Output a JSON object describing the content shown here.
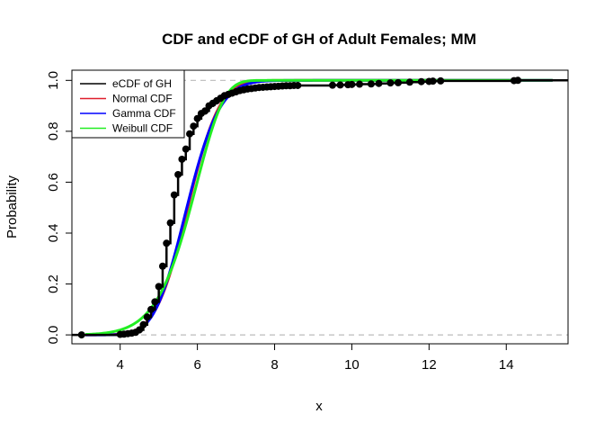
{
  "chart_data": {
    "type": "line",
    "title": "CDF and eCDF of GH of Adult Females; MM",
    "xlabel": "x",
    "ylabel": "Probability",
    "xlim": [
      2.75,
      15.6
    ],
    "ylim": [
      -0.035,
      1.04
    ],
    "x_ticks": [
      4,
      6,
      8,
      10,
      12,
      14
    ],
    "y_ticks": [
      0.0,
      0.2,
      0.4,
      0.6,
      0.8,
      1.0
    ],
    "x_tick_labels": [
      "4",
      "6",
      "8",
      "10",
      "12",
      "14"
    ],
    "y_tick_labels": [
      "0.0",
      "0.2",
      "0.4",
      "0.6",
      "0.8",
      "1.0"
    ],
    "reference_lines": [
      0,
      1
    ],
    "legend": {
      "position": "top-left",
      "entries": [
        {
          "label": "eCDF of GH",
          "color": "#000000"
        },
        {
          "label": "Normal CDF",
          "color": "#DF1F2D"
        },
        {
          "label": "Gamma CDF",
          "color": "#0000FF"
        },
        {
          "label": "Weibull CDF",
          "color": "#22EE22"
        }
      ]
    },
    "ecdf_points": {
      "x": [
        3.0,
        4.0,
        4.1,
        4.2,
        4.3,
        4.4,
        4.5,
        4.6,
        4.7,
        4.8,
        4.9,
        5.0,
        5.1,
        5.2,
        5.3,
        5.4,
        5.5,
        5.6,
        5.7,
        5.8,
        5.9,
        6.0,
        6.1,
        6.2,
        6.3,
        6.4,
        6.5,
        6.6,
        6.7,
        6.8,
        6.9,
        7.0,
        7.1,
        7.2,
        7.3,
        7.4,
        7.5,
        7.6,
        7.7,
        7.8,
        7.9,
        8.0,
        8.1,
        8.2,
        8.3,
        8.4,
        8.5,
        8.6,
        9.5,
        9.7,
        9.9,
        10.0,
        10.2,
        10.5,
        10.7,
        11.0,
        11.2,
        11.5,
        11.8,
        12.0,
        12.1,
        12.3,
        14.2,
        14.3
      ],
      "y": [
        0.0,
        0.002,
        0.003,
        0.005,
        0.007,
        0.01,
        0.02,
        0.04,
        0.07,
        0.1,
        0.13,
        0.19,
        0.27,
        0.36,
        0.44,
        0.55,
        0.63,
        0.69,
        0.73,
        0.79,
        0.82,
        0.85,
        0.87,
        0.88,
        0.9,
        0.91,
        0.92,
        0.93,
        0.94,
        0.945,
        0.95,
        0.955,
        0.96,
        0.963,
        0.966,
        0.968,
        0.97,
        0.972,
        0.973,
        0.974,
        0.975,
        0.976,
        0.977,
        0.978,
        0.979,
        0.979,
        0.98,
        0.98,
        0.981,
        0.982,
        0.983,
        0.984,
        0.985,
        0.986,
        0.988,
        0.99,
        0.991,
        0.993,
        0.995,
        0.996,
        0.997,
        0.998,
        0.999,
        1.0
      ]
    },
    "series": [
      {
        "name": "Normal CDF",
        "dist": "normal",
        "mean": 5.75,
        "sd": 0.65,
        "color": "#DF1F2D",
        "x_range": [
          3.1,
          15.2
        ]
      },
      {
        "name": "Gamma CDF",
        "dist": "gamma",
        "shape": 75,
        "rate": 13.04,
        "color": "#0000FF",
        "x_range": [
          3.1,
          15.2
        ]
      },
      {
        "name": "Weibull CDF",
        "dist": "weibull",
        "shape": 9.5,
        "scale": 6.05,
        "color": "#22EE22",
        "x_range": [
          3.1,
          15.2
        ]
      }
    ]
  }
}
